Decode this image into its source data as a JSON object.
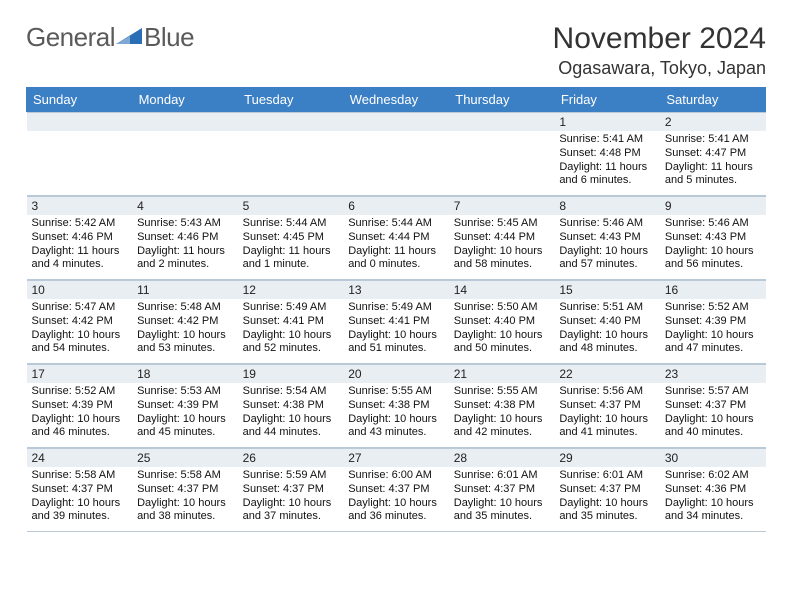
{
  "logo": {
    "text1": "General",
    "text2": "Blue",
    "color_text": "#5a5a5a",
    "accent": "#2a6fb5"
  },
  "title": "November 2024",
  "location": "Ogasawara, Tokyo, Japan",
  "colors": {
    "header_bg": "#3b7fc4",
    "header_text": "#ffffff",
    "daynum_bg": "#e9eef3",
    "cell_border": "#b9c9d8",
    "body_text": "#111111",
    "page_bg": "#ffffff"
  },
  "weekdays": [
    "Sunday",
    "Monday",
    "Tuesday",
    "Wednesday",
    "Thursday",
    "Friday",
    "Saturday"
  ],
  "weeks": [
    [
      null,
      null,
      null,
      null,
      null,
      {
        "n": "1",
        "sunrise": "5:41 AM",
        "sunset": "4:48 PM",
        "daylight": "11 hours and 6 minutes."
      },
      {
        "n": "2",
        "sunrise": "5:41 AM",
        "sunset": "4:47 PM",
        "daylight": "11 hours and 5 minutes."
      }
    ],
    [
      {
        "n": "3",
        "sunrise": "5:42 AM",
        "sunset": "4:46 PM",
        "daylight": "11 hours and 4 minutes."
      },
      {
        "n": "4",
        "sunrise": "5:43 AM",
        "sunset": "4:46 PM",
        "daylight": "11 hours and 2 minutes."
      },
      {
        "n": "5",
        "sunrise": "5:44 AM",
        "sunset": "4:45 PM",
        "daylight": "11 hours and 1 minute."
      },
      {
        "n": "6",
        "sunrise": "5:44 AM",
        "sunset": "4:44 PM",
        "daylight": "11 hours and 0 minutes."
      },
      {
        "n": "7",
        "sunrise": "5:45 AM",
        "sunset": "4:44 PM",
        "daylight": "10 hours and 58 minutes."
      },
      {
        "n": "8",
        "sunrise": "5:46 AM",
        "sunset": "4:43 PM",
        "daylight": "10 hours and 57 minutes."
      },
      {
        "n": "9",
        "sunrise": "5:46 AM",
        "sunset": "4:43 PM",
        "daylight": "10 hours and 56 minutes."
      }
    ],
    [
      {
        "n": "10",
        "sunrise": "5:47 AM",
        "sunset": "4:42 PM",
        "daylight": "10 hours and 54 minutes."
      },
      {
        "n": "11",
        "sunrise": "5:48 AM",
        "sunset": "4:42 PM",
        "daylight": "10 hours and 53 minutes."
      },
      {
        "n": "12",
        "sunrise": "5:49 AM",
        "sunset": "4:41 PM",
        "daylight": "10 hours and 52 minutes."
      },
      {
        "n": "13",
        "sunrise": "5:49 AM",
        "sunset": "4:41 PM",
        "daylight": "10 hours and 51 minutes."
      },
      {
        "n": "14",
        "sunrise": "5:50 AM",
        "sunset": "4:40 PM",
        "daylight": "10 hours and 50 minutes."
      },
      {
        "n": "15",
        "sunrise": "5:51 AM",
        "sunset": "4:40 PM",
        "daylight": "10 hours and 48 minutes."
      },
      {
        "n": "16",
        "sunrise": "5:52 AM",
        "sunset": "4:39 PM",
        "daylight": "10 hours and 47 minutes."
      }
    ],
    [
      {
        "n": "17",
        "sunrise": "5:52 AM",
        "sunset": "4:39 PM",
        "daylight": "10 hours and 46 minutes."
      },
      {
        "n": "18",
        "sunrise": "5:53 AM",
        "sunset": "4:39 PM",
        "daylight": "10 hours and 45 minutes."
      },
      {
        "n": "19",
        "sunrise": "5:54 AM",
        "sunset": "4:38 PM",
        "daylight": "10 hours and 44 minutes."
      },
      {
        "n": "20",
        "sunrise": "5:55 AM",
        "sunset": "4:38 PM",
        "daylight": "10 hours and 43 minutes."
      },
      {
        "n": "21",
        "sunrise": "5:55 AM",
        "sunset": "4:38 PM",
        "daylight": "10 hours and 42 minutes."
      },
      {
        "n": "22",
        "sunrise": "5:56 AM",
        "sunset": "4:37 PM",
        "daylight": "10 hours and 41 minutes."
      },
      {
        "n": "23",
        "sunrise": "5:57 AM",
        "sunset": "4:37 PM",
        "daylight": "10 hours and 40 minutes."
      }
    ],
    [
      {
        "n": "24",
        "sunrise": "5:58 AM",
        "sunset": "4:37 PM",
        "daylight": "10 hours and 39 minutes."
      },
      {
        "n": "25",
        "sunrise": "5:58 AM",
        "sunset": "4:37 PM",
        "daylight": "10 hours and 38 minutes."
      },
      {
        "n": "26",
        "sunrise": "5:59 AM",
        "sunset": "4:37 PM",
        "daylight": "10 hours and 37 minutes."
      },
      {
        "n": "27",
        "sunrise": "6:00 AM",
        "sunset": "4:37 PM",
        "daylight": "10 hours and 36 minutes."
      },
      {
        "n": "28",
        "sunrise": "6:01 AM",
        "sunset": "4:37 PM",
        "daylight": "10 hours and 35 minutes."
      },
      {
        "n": "29",
        "sunrise": "6:01 AM",
        "sunset": "4:37 PM",
        "daylight": "10 hours and 35 minutes."
      },
      {
        "n": "30",
        "sunrise": "6:02 AM",
        "sunset": "4:36 PM",
        "daylight": "10 hours and 34 minutes."
      }
    ]
  ],
  "labels": {
    "sunrise": "Sunrise:",
    "sunset": "Sunset:",
    "daylight": "Daylight:"
  }
}
